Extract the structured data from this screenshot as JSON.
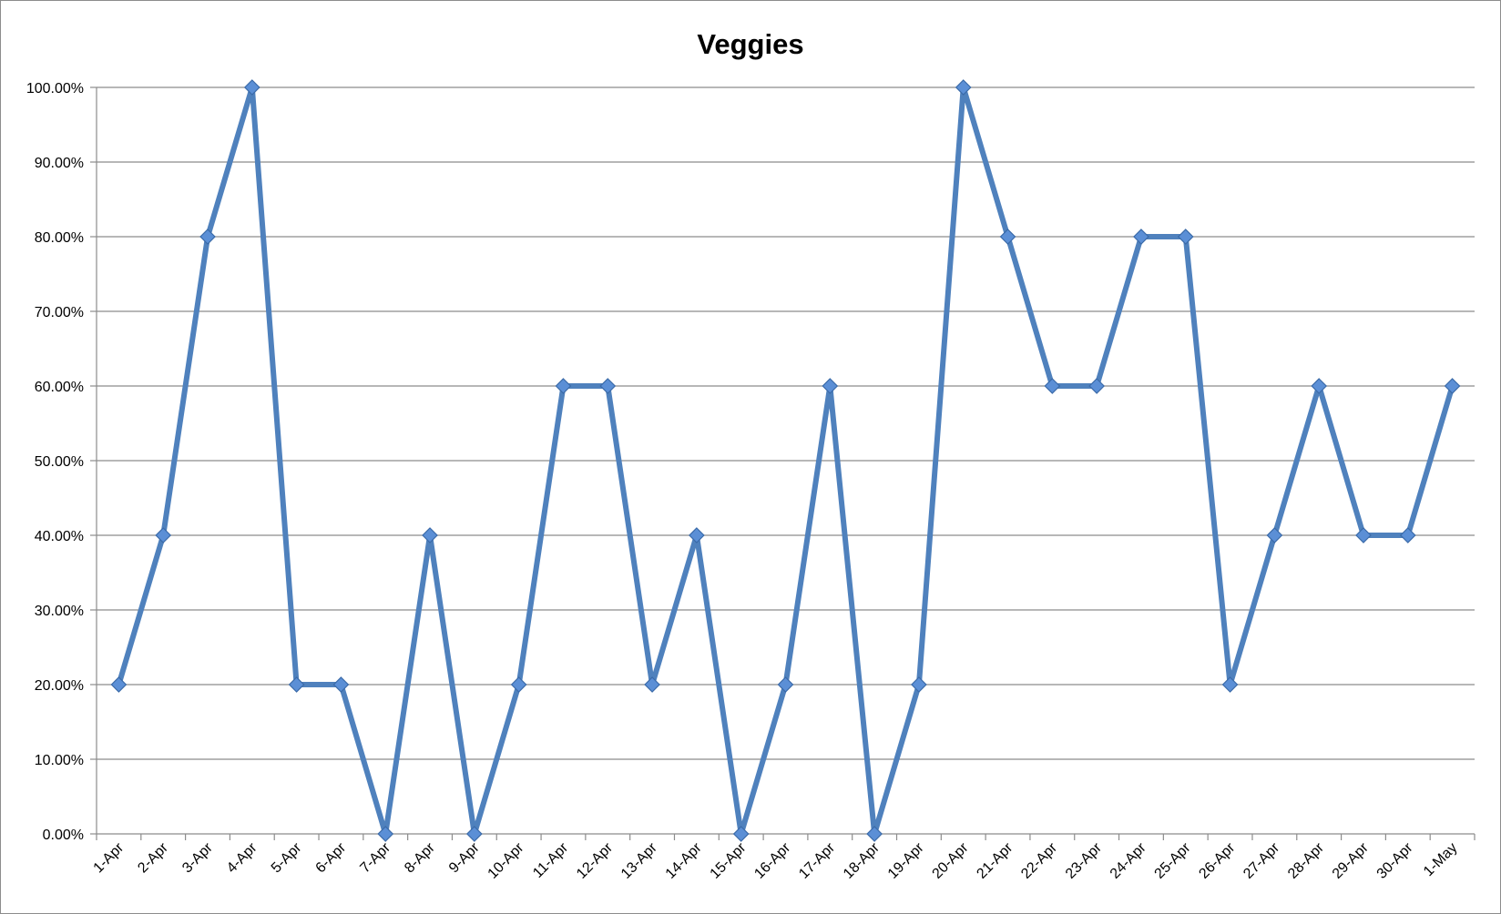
{
  "chart_data": {
    "type": "line",
    "title": "Veggies",
    "xlabel": "",
    "ylabel": "",
    "ylim": [
      0,
      100
    ],
    "ytick_step": 10,
    "ytick_labels": [
      "0.00%",
      "10.00%",
      "20.00%",
      "30.00%",
      "40.00%",
      "50.00%",
      "60.00%",
      "70.00%",
      "80.00%",
      "90.00%",
      "100.00%"
    ],
    "grid": true,
    "legend": "none",
    "line_color": "#4f81bd",
    "marker_fill": "#5b8fd6",
    "categories": [
      "1-Apr",
      "2-Apr",
      "3-Apr",
      "4-Apr",
      "5-Apr",
      "6-Apr",
      "7-Apr",
      "8-Apr",
      "9-Apr",
      "10-Apr",
      "11-Apr",
      "12-Apr",
      "13-Apr",
      "14-Apr",
      "15-Apr",
      "16-Apr",
      "17-Apr",
      "18-Apr",
      "19-Apr",
      "20-Apr",
      "21-Apr",
      "22-Apr",
      "23-Apr",
      "24-Apr",
      "25-Apr",
      "26-Apr",
      "27-Apr",
      "28-Apr",
      "29-Apr",
      "30-Apr",
      "1-May"
    ],
    "series": [
      {
        "values": [
          20,
          40,
          80,
          100,
          20,
          20,
          0,
          40,
          0,
          20,
          60,
          60,
          20,
          40,
          0,
          20,
          60,
          0,
          20,
          100,
          80,
          60,
          60,
          80,
          80,
          20,
          40,
          60,
          40,
          40,
          60
        ]
      }
    ]
  }
}
